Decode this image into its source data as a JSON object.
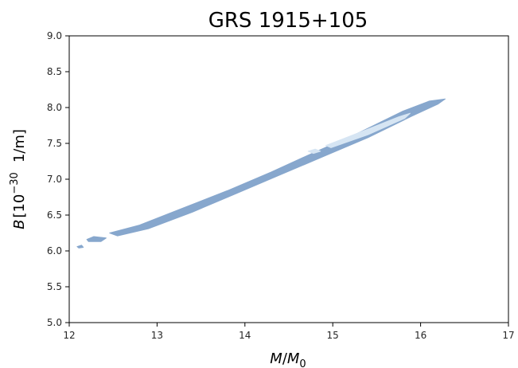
{
  "chart_data": {
    "type": "contour",
    "title": "GRS 1915+105",
    "xlabel": {
      "var": "M",
      "sep": "/",
      "var2": "M",
      "sub": "0"
    },
    "ylabel": {
      "var": "B",
      "open": "[10",
      "sup": "−30",
      "unit": "1/m]"
    },
    "xlim": [
      12,
      17
    ],
    "ylim": [
      5.0,
      9.0
    ],
    "xticks": [
      12,
      13,
      14,
      15,
      16,
      17
    ],
    "xtick_labels": [
      "12",
      "13",
      "14",
      "15",
      "16",
      "17"
    ],
    "yticks": [
      5.0,
      5.5,
      6.0,
      6.5,
      7.0,
      7.5,
      8.0,
      8.5,
      9.0
    ],
    "ytick_labels": [
      "5.0",
      "5.5",
      "6.0",
      "6.5",
      "7.0",
      "7.5",
      "8.0",
      "8.5",
      "9.0"
    ],
    "grid": false,
    "regions": [
      {
        "level": "outer",
        "color": "#87a7cd",
        "points": [
          [
            12.46,
            6.25
          ],
          [
            12.8,
            6.36
          ],
          [
            13.3,
            6.6
          ],
          [
            13.8,
            6.84
          ],
          [
            14.3,
            7.1
          ],
          [
            14.8,
            7.38
          ],
          [
            15.3,
            7.65
          ],
          [
            15.8,
            7.95
          ],
          [
            16.1,
            8.09
          ],
          [
            16.28,
            8.12
          ],
          [
            16.2,
            8.05
          ],
          [
            15.9,
            7.88
          ],
          [
            15.4,
            7.58
          ],
          [
            14.9,
            7.32
          ],
          [
            14.4,
            7.06
          ],
          [
            13.9,
            6.8
          ],
          [
            13.4,
            6.54
          ],
          [
            12.9,
            6.31
          ],
          [
            12.55,
            6.21
          ]
        ]
      },
      {
        "level": "outer",
        "color": "#87a7cd",
        "points": [
          [
            12.2,
            6.16
          ],
          [
            12.28,
            6.2
          ],
          [
            12.42,
            6.18
          ],
          [
            12.36,
            6.13
          ],
          [
            12.22,
            6.13
          ]
        ]
      },
      {
        "level": "outer",
        "color": "#87a7cd",
        "points": [
          [
            12.09,
            6.06
          ],
          [
            12.14,
            6.08
          ],
          [
            12.16,
            6.05
          ],
          [
            12.11,
            6.04
          ]
        ]
      },
      {
        "level": "inner",
        "color": "#d6e5f3",
        "points": [
          [
            14.92,
            7.47
          ],
          [
            15.3,
            7.65
          ],
          [
            15.75,
            7.87
          ],
          [
            15.88,
            7.92
          ],
          [
            15.82,
            7.85
          ],
          [
            15.4,
            7.62
          ],
          [
            14.98,
            7.44
          ]
        ]
      },
      {
        "level": "inner",
        "color": "#d6e5f3",
        "points": [
          [
            14.72,
            7.39
          ],
          [
            14.8,
            7.42
          ],
          [
            14.86,
            7.39
          ],
          [
            14.78,
            7.36
          ]
        ]
      }
    ]
  }
}
